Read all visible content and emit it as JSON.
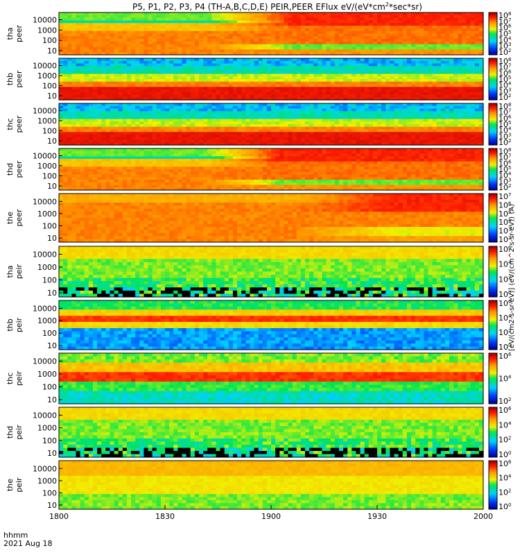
{
  "chart_data": {
    "type": "heatmap",
    "title": "P5, P1, P2, P3, P4 (TH-A,B,C,D,E) PEIR,PEER EFlux eV/(eV*cm",
    "title_sup": "2",
    "title_end": "*sec*sr)",
    "colorbar_label": "[eV/(cm2-s-sr-eV)] (eV/(cm^2-s-sr-eV)) (A)",
    "colorbar_scale": "log",
    "x_axis": {
      "label_line1": "hhmm",
      "label_line2": "2021 Aug 18",
      "ticks": [
        "1800",
        "1830",
        "1900",
        "1930",
        "2000"
      ]
    },
    "y_axis_scale": "log",
    "panels": [
      {
        "probe": "tha",
        "species": "peer",
        "yticks": [
          "10",
          "100",
          "1000",
          "10000"
        ],
        "cbticks": [
          "10^2",
          "10^3",
          "10^4",
          "10^5",
          "10^6",
          "10^7",
          "10^8"
        ],
        "pattern": "electron_transition",
        "transition_start": 0.35,
        "transition_end": 0.55
      },
      {
        "probe": "thb",
        "species": "peer",
        "yticks": [
          "10",
          "100",
          "1000",
          "10000"
        ],
        "cbticks": [
          "10^2",
          "10^3",
          "10^4",
          "10^5",
          "10^6",
          "10^7",
          "10^8"
        ],
        "pattern": "electron_steady_blue"
      },
      {
        "probe": "thc",
        "species": "peer",
        "yticks": [
          "10",
          "100",
          "1000",
          "10000"
        ],
        "cbticks": [
          "10^2",
          "10^3",
          "10^4",
          "10^5",
          "10^6",
          "10^7",
          "10^8"
        ],
        "pattern": "electron_steady_blue"
      },
      {
        "probe": "thd",
        "species": "peer",
        "yticks": [
          "10",
          "100",
          "1000",
          "10000"
        ],
        "cbticks": [
          "10^2",
          "10^3",
          "10^4",
          "10^5",
          "10^6",
          "10^7",
          "10^8"
        ],
        "pattern": "electron_transition",
        "transition_start": 0.35,
        "transition_end": 0.52
      },
      {
        "probe": "the",
        "species": "peer",
        "yticks": [
          "10",
          "100",
          "1000",
          "10000"
        ],
        "cbticks": [
          "10^2",
          "10^3",
          "10^4",
          "10^5",
          "10^6",
          "10^7"
        ],
        "pattern": "electron_transition_late",
        "transition_start": 0.55,
        "transition_end": 0.8
      },
      {
        "probe": "tha",
        "species": "peir",
        "yticks": [
          "10",
          "100",
          "1000",
          "10000"
        ],
        "cbticks": [
          "10^0",
          "10^2",
          "10^4",
          "10^6"
        ],
        "pattern": "ion_noisy"
      },
      {
        "probe": "thb",
        "species": "peir",
        "yticks": [
          "10",
          "100",
          "1000",
          "10000"
        ],
        "cbticks": [
          "10^0",
          "10^2",
          "10^4",
          "10^6"
        ],
        "pattern": "ion_banded"
      },
      {
        "probe": "thc",
        "species": "peir",
        "yticks": [
          "10",
          "100",
          "1000",
          "10000"
        ],
        "cbticks": [
          "10^2",
          "10^4",
          "10^6"
        ],
        "pattern": "ion_mid"
      },
      {
        "probe": "thd",
        "species": "peir",
        "yticks": [
          "10",
          "100",
          "1000",
          "10000"
        ],
        "cbticks": [
          "10^0",
          "10^2",
          "10^4",
          "10^6"
        ],
        "pattern": "ion_noisy"
      },
      {
        "probe": "the",
        "species": "peir",
        "yticks": [
          "10",
          "100",
          "1000",
          "10000"
        ],
        "cbticks": [
          "10^0",
          "10^2",
          "10^4",
          "10^6"
        ],
        "pattern": "ion_quiet"
      }
    ]
  }
}
